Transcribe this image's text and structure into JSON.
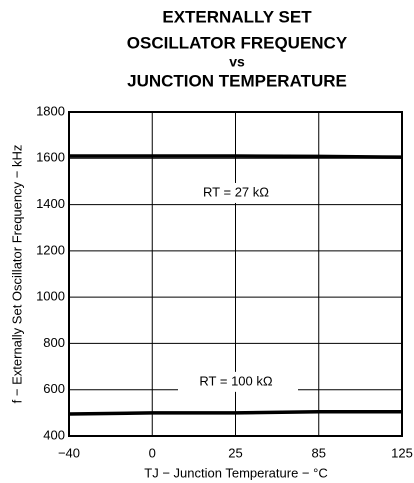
{
  "chart_data": {
    "type": "line",
    "title": [
      "EXTERNALLY SET",
      "OSCILLATOR FREQUENCY",
      "vs",
      "JUNCTION TEMPERATURE"
    ],
    "xlabel": "TJ − Junction Temperature − °C",
    "ylabel": "f − Externally Set Oscillator Frequency − kHz",
    "categories": [
      "−40",
      "0",
      "25",
      "85",
      "125"
    ],
    "series": [
      {
        "name": "RT = 27 kΩ",
        "color": "#000000",
        "values": [
          1610,
          1610,
          1610,
          1608,
          1605
        ]
      },
      {
        "name": "RT = 100 kΩ",
        "color": "#000000",
        "values": [
          495,
          500,
          500,
          505,
          505
        ]
      }
    ],
    "ylim": [
      400,
      1800
    ],
    "yticks": [
      400,
      600,
      800,
      1000,
      1200,
      1400,
      1600,
      1800
    ],
    "grid": true
  }
}
